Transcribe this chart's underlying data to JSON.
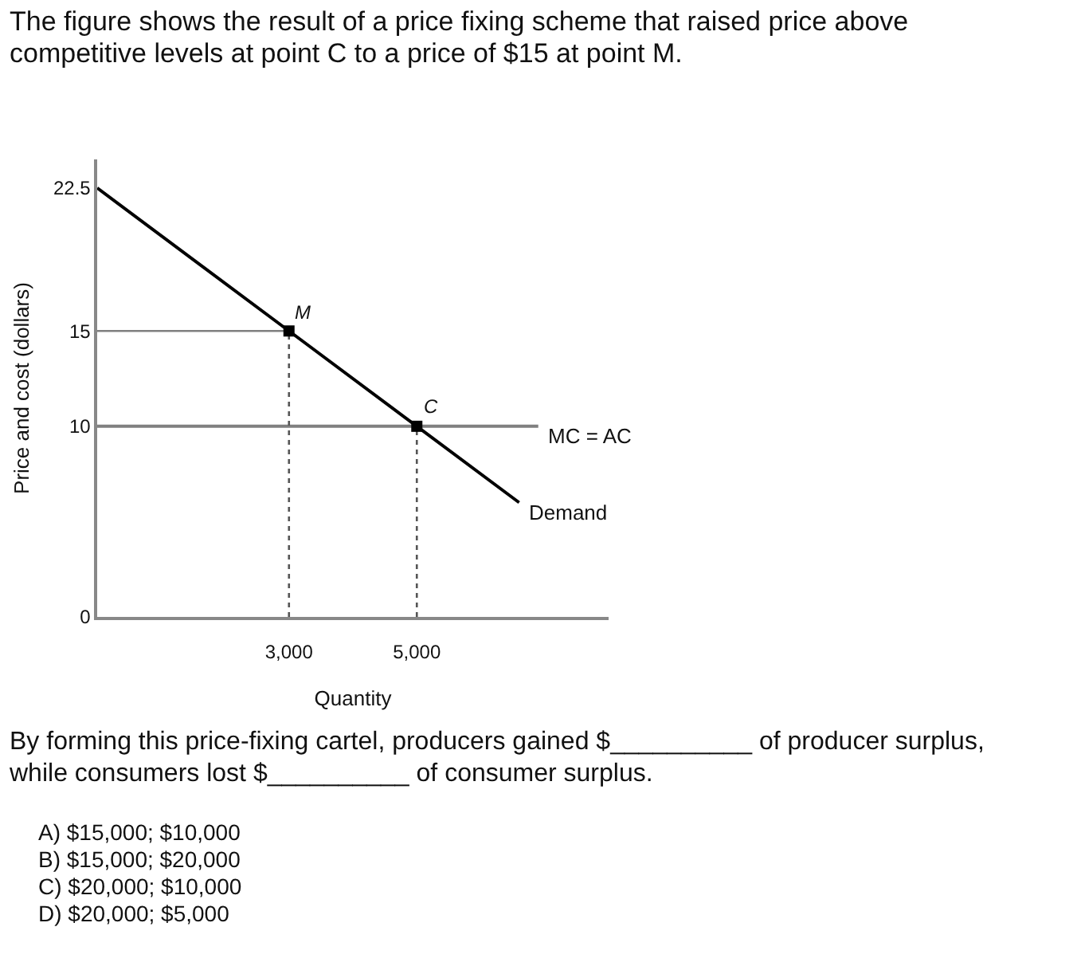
{
  "chart_data": {
    "type": "line",
    "title": "The figure shows the result of a price fixing scheme that raised price above competitive levels at point C to a price of $15 at point M.",
    "xlabel": "Quantity",
    "ylabel": "Price and cost (dollars)",
    "xlim": [
      0,
      8000
    ],
    "xticks": [
      {
        "value": 3000,
        "label": "3,000"
      },
      {
        "value": 5000,
        "label": "5,000"
      }
    ],
    "ylim": [
      0,
      24
    ],
    "yticks": [
      0,
      10,
      15,
      22.5
    ],
    "grid": false,
    "legend": false,
    "series": [
      {
        "name": "Demand",
        "color": "#000000",
        "x": [
          0,
          3000,
          5000,
          6600
        ],
        "values": [
          22.5,
          15,
          10,
          6
        ]
      },
      {
        "name": "MC = AC",
        "color": "#808080",
        "x": [
          0,
          6900
        ],
        "values": [
          10,
          10
        ]
      },
      {
        "color": "#808080",
        "x": [
          0,
          3000
        ],
        "values": [
          15,
          15
        ]
      },
      {
        "type": "line",
        "color": "#555555",
        "line_style": "dotted",
        "x": [
          3000,
          3000
        ],
        "values": [
          0,
          15
        ]
      },
      {
        "type": "line",
        "color": "#555555",
        "line_style": "dotted",
        "x": [
          5000,
          5000
        ],
        "values": [
          0,
          10
        ]
      },
      {
        "type": "scatter",
        "color": "#000000",
        "marker": "square",
        "x": [
          3000,
          5000
        ],
        "values": [
          15,
          10
        ]
      }
    ],
    "annotations": [
      {
        "text": "M",
        "x": 3000,
        "y": 15
      },
      {
        "text": "C",
        "x": 5000,
        "y": 10
      },
      "By forming this price-fixing cartel, producers gained $__________ of producer surplus, while consumers lost $__________ of consumer surplus.",
      "A) $15,000; $10,000",
      "B) $15,000; $20,000",
      "C) $20,000; $10,000",
      "D) $20,000; $5,000"
    ]
  }
}
